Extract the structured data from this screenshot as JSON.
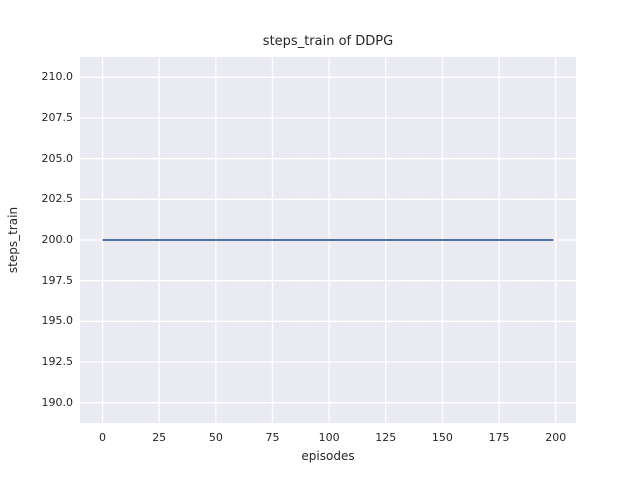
{
  "chart_data": {
    "type": "line",
    "title": "steps_train of DDPG",
    "xlabel": "episodes",
    "ylabel": "steps_train",
    "xlim": [
      -9.95,
      208.95
    ],
    "ylim": [
      188.75,
      211.25
    ],
    "xticks": [
      0,
      25,
      50,
      75,
      100,
      125,
      150,
      175,
      200
    ],
    "xtick_labels": [
      "0",
      "25",
      "50",
      "75",
      "100",
      "125",
      "150",
      "175",
      "200"
    ],
    "yticks": [
      190.0,
      192.5,
      195.0,
      197.5,
      200.0,
      202.5,
      205.0,
      207.5,
      210.0
    ],
    "ytick_labels": [
      "190.0",
      "192.5",
      "195.0",
      "197.5",
      "200.0",
      "202.5",
      "205.0",
      "207.5",
      "210.0"
    ],
    "grid": true,
    "legend": false,
    "series": [
      {
        "name": "steps_train",
        "x": [
          0,
          199
        ],
        "y": [
          200,
          200
        ],
        "color": "#4c72b0",
        "line_width": 2
      }
    ],
    "colors": {
      "plot_background": "#eaeaf2",
      "grid_line": "#ffffff",
      "figure_background": "#ffffff",
      "text": "#262626"
    }
  }
}
